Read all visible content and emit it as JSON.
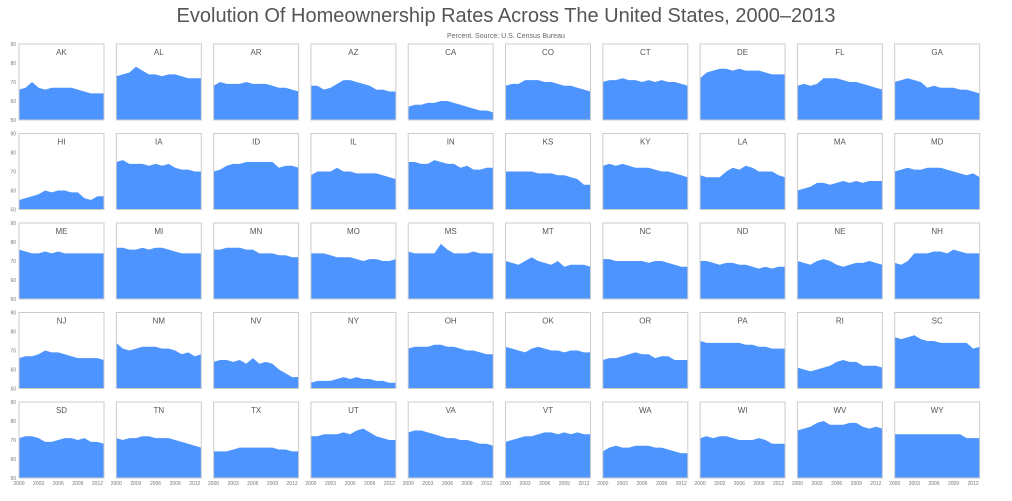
{
  "title": "Evolution Of Homeownership Rates Across The United States, 2000–2013",
  "subtitle": "Percent. Source: U.S. Census Bureau",
  "colors": {
    "area": "#4d94ff",
    "frame": "#cccccc",
    "text": "#555555"
  },
  "chart_data": {
    "type": "area",
    "layout": "small-multiples",
    "x": [
      2000,
      2001,
      2002,
      2003,
      2004,
      2005,
      2006,
      2007,
      2008,
      2009,
      2010,
      2011,
      2012,
      2013
    ],
    "x_ticks": [
      "2000",
      "2003",
      "2006",
      "2009",
      "2012"
    ],
    "ylim": [
      50,
      90
    ],
    "y_ticks": [
      "50",
      "60",
      "70",
      "80",
      "90"
    ],
    "grid": false,
    "legend": "none",
    "series": [
      {
        "name": "AK",
        "values": [
          66,
          67,
          70,
          67,
          66,
          67,
          67,
          67,
          67,
          66,
          65,
          64,
          64,
          64
        ]
      },
      {
        "name": "AL",
        "values": [
          73,
          74,
          75,
          78,
          76,
          74,
          74,
          73,
          74,
          74,
          73,
          72,
          72,
          72
        ]
      },
      {
        "name": "AR",
        "values": [
          68,
          70,
          69,
          69,
          69,
          70,
          69,
          69,
          69,
          68,
          67,
          67,
          66,
          65
        ]
      },
      {
        "name": "AZ",
        "values": [
          68,
          68,
          66,
          67,
          69,
          71,
          71,
          70,
          69,
          68,
          66,
          66,
          65,
          65
        ]
      },
      {
        "name": "CA",
        "values": [
          57,
          58,
          58,
          59,
          59,
          60,
          60,
          59,
          58,
          57,
          56,
          55,
          55,
          54
        ]
      },
      {
        "name": "CO",
        "values": [
          68,
          69,
          69,
          71,
          71,
          71,
          70,
          70,
          69,
          68,
          68,
          67,
          66,
          65
        ]
      },
      {
        "name": "CT",
        "values": [
          70,
          71,
          71,
          72,
          71,
          71,
          70,
          71,
          70,
          71,
          70,
          70,
          69,
          68
        ]
      },
      {
        "name": "DE",
        "values": [
          72,
          75,
          76,
          77,
          77,
          76,
          77,
          76,
          76,
          76,
          75,
          74,
          74,
          74
        ]
      },
      {
        "name": "FL",
        "values": [
          68,
          69,
          68,
          69,
          72,
          72,
          72,
          71,
          70,
          70,
          69,
          68,
          67,
          66
        ]
      },
      {
        "name": "GA",
        "values": [
          70,
          71,
          72,
          71,
          70,
          67,
          68,
          67,
          67,
          67,
          66,
          66,
          65,
          64
        ]
      },
      {
        "name": "HI",
        "values": [
          55,
          56,
          57,
          58,
          60,
          59,
          60,
          60,
          59,
          59,
          56,
          55,
          57,
          57
        ]
      },
      {
        "name": "IA",
        "values": [
          75,
          76,
          74,
          74,
          74,
          73,
          74,
          73,
          74,
          72,
          71,
          71,
          70,
          70
        ]
      },
      {
        "name": "ID",
        "values": [
          70,
          71,
          73,
          74,
          74,
          75,
          75,
          75,
          75,
          75,
          72,
          73,
          73,
          72
        ]
      },
      {
        "name": "IL",
        "values": [
          68,
          70,
          70,
          70,
          72,
          70,
          70,
          69,
          69,
          69,
          69,
          68,
          67,
          66
        ]
      },
      {
        "name": "IN",
        "values": [
          75,
          75,
          74,
          74,
          76,
          75,
          74,
          74,
          72,
          73,
          71,
          71,
          72,
          72
        ]
      },
      {
        "name": "KS",
        "values": [
          70,
          70,
          70,
          70,
          70,
          69,
          69,
          69,
          68,
          68,
          67,
          66,
          63,
          63
        ]
      },
      {
        "name": "KY",
        "values": [
          73,
          74,
          73,
          74,
          73,
          72,
          72,
          72,
          71,
          70,
          70,
          69,
          68,
          67
        ]
      },
      {
        "name": "LA",
        "values": [
          68,
          67,
          67,
          67,
          70,
          72,
          71,
          73,
          72,
          70,
          70,
          70,
          68,
          67
        ]
      },
      {
        "name": "MA",
        "values": [
          60,
          61,
          62,
          64,
          64,
          63,
          64,
          65,
          64,
          65,
          64,
          65,
          65,
          65
        ]
      },
      {
        "name": "MD",
        "values": [
          70,
          71,
          72,
          71,
          71,
          72,
          72,
          72,
          71,
          70,
          69,
          68,
          69,
          67
        ]
      },
      {
        "name": "ME",
        "values": [
          76,
          75,
          74,
          74,
          75,
          74,
          75,
          74,
          74,
          74,
          74,
          74,
          74,
          74
        ]
      },
      {
        "name": "MI",
        "values": [
          77,
          77,
          76,
          76,
          77,
          76,
          77,
          77,
          76,
          75,
          74,
          74,
          74,
          74
        ]
      },
      {
        "name": "MN",
        "values": [
          76,
          76,
          77,
          77,
          77,
          76,
          76,
          74,
          74,
          74,
          73,
          73,
          72,
          72
        ]
      },
      {
        "name": "MO",
        "values": [
          74,
          74,
          74,
          73,
          72,
          72,
          72,
          71,
          70,
          71,
          71,
          70,
          70,
          71
        ]
      },
      {
        "name": "MS",
        "values": [
          75,
          74,
          74,
          74,
          74,
          79,
          76,
          74,
          74,
          74,
          75,
          74,
          74,
          74
        ]
      },
      {
        "name": "MT",
        "values": [
          70,
          69,
          68,
          70,
          72,
          70,
          69,
          68,
          70,
          67,
          68,
          68,
          68,
          67
        ]
      },
      {
        "name": "NC",
        "values": [
          71,
          71,
          70,
          70,
          70,
          70,
          70,
          69,
          70,
          70,
          69,
          68,
          67,
          67
        ]
      },
      {
        "name": "ND",
        "values": [
          70,
          70,
          69,
          68,
          69,
          69,
          68,
          68,
          67,
          66,
          67,
          66,
          67,
          67
        ]
      },
      {
        "name": "NE",
        "values": [
          70,
          69,
          68,
          70,
          71,
          70,
          68,
          67,
          68,
          69,
          69,
          70,
          69,
          68
        ]
      },
      {
        "name": "NH",
        "values": [
          69,
          68,
          70,
          74,
          74,
          74,
          75,
          75,
          74,
          76,
          75,
          74,
          74,
          74
        ]
      },
      {
        "name": "NJ",
        "values": [
          66,
          67,
          67,
          68,
          70,
          69,
          69,
          68,
          67,
          66,
          66,
          66,
          66,
          65
        ]
      },
      {
        "name": "NM",
        "values": [
          74,
          71,
          70,
          71,
          72,
          72,
          72,
          71,
          71,
          70,
          68,
          69,
          67,
          68
        ]
      },
      {
        "name": "NV",
        "values": [
          64,
          65,
          65,
          64,
          65,
          63,
          66,
          63,
          64,
          63,
          60,
          58,
          56,
          56
        ]
      },
      {
        "name": "NY",
        "values": [
          53,
          54,
          54,
          54,
          55,
          56,
          55,
          56,
          55,
          55,
          54,
          54,
          53,
          53
        ]
      },
      {
        "name": "OH",
        "values": [
          71,
          72,
          72,
          72,
          73,
          73,
          72,
          72,
          71,
          70,
          70,
          69,
          68,
          68
        ]
      },
      {
        "name": "OK",
        "values": [
          72,
          71,
          70,
          69,
          71,
          72,
          71,
          70,
          70,
          69,
          70,
          70,
          69,
          69
        ]
      },
      {
        "name": "OR",
        "values": [
          65,
          66,
          66,
          67,
          68,
          69,
          68,
          68,
          66,
          67,
          67,
          65,
          65,
          65
        ]
      },
      {
        "name": "PA",
        "values": [
          75,
          74,
          74,
          74,
          74,
          74,
          74,
          73,
          73,
          72,
          72,
          71,
          71,
          71
        ]
      },
      {
        "name": "RI",
        "values": [
          61,
          60,
          59,
          60,
          61,
          62,
          64,
          65,
          64,
          64,
          62,
          62,
          62,
          61
        ]
      },
      {
        "name": "SC",
        "values": [
          77,
          76,
          77,
          78,
          76,
          75,
          75,
          74,
          74,
          74,
          74,
          74,
          71,
          72
        ]
      },
      {
        "name": "SD",
        "values": [
          71,
          72,
          72,
          71,
          69,
          69,
          70,
          71,
          71,
          70,
          71,
          69,
          69,
          68
        ]
      },
      {
        "name": "TN",
        "values": [
          71,
          70,
          71,
          71,
          72,
          72,
          71,
          71,
          71,
          70,
          69,
          68,
          67,
          66
        ]
      },
      {
        "name": "TX",
        "values": [
          64,
          64,
          64,
          65,
          66,
          66,
          66,
          66,
          66,
          66,
          65,
          65,
          64,
          64
        ]
      },
      {
        "name": "UT",
        "values": [
          72,
          72,
          73,
          73,
          73,
          74,
          73,
          75,
          76,
          74,
          72,
          71,
          70,
          70
        ]
      },
      {
        "name": "VA",
        "values": [
          74,
          75,
          75,
          74,
          73,
          72,
          71,
          71,
          70,
          70,
          69,
          68,
          68,
          67
        ]
      },
      {
        "name": "VT",
        "values": [
          69,
          70,
          71,
          72,
          72,
          73,
          74,
          74,
          73,
          74,
          73,
          74,
          73,
          73
        ]
      },
      {
        "name": "WA",
        "values": [
          64,
          66,
          67,
          66,
          66,
          67,
          67,
          67,
          66,
          66,
          65,
          64,
          63,
          63
        ]
      },
      {
        "name": "WI",
        "values": [
          71,
          72,
          71,
          72,
          72,
          71,
          70,
          70,
          70,
          71,
          70,
          68,
          68,
          68
        ]
      },
      {
        "name": "WV",
        "values": [
          75,
          76,
          77,
          79,
          80,
          78,
          78,
          78,
          79,
          79,
          77,
          76,
          77,
          76
        ]
      },
      {
        "name": "WY",
        "values": [
          73,
          73,
          73,
          73,
          73,
          73,
          73,
          73,
          73,
          73,
          73,
          71,
          71,
          71
        ]
      }
    ]
  }
}
